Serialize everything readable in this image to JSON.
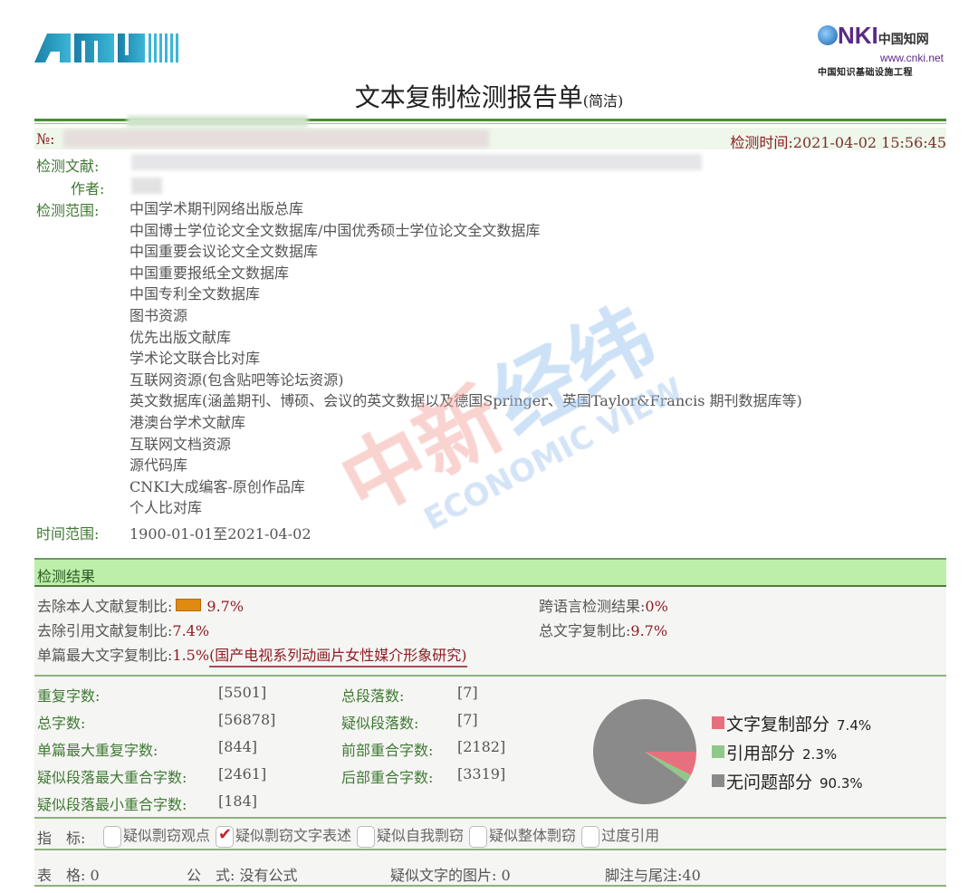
{
  "header": {
    "left_logo": "AMLC",
    "right_logo": {
      "brand": "CNKI中国知网",
      "url": "www.cnki.net",
      "tagline": "中国知识基础设施工程"
    },
    "title": "文本复制检测报告单",
    "title_suffix": "(简洁)"
  },
  "meta": {
    "no_label": "№:",
    "time_label": "检测时间",
    "time_value": ":2021-04-02 15:56:45",
    "doc_label": "检测文献:",
    "author_label": "作者:",
    "scope_label": "检测范围:",
    "scope_items": [
      "中国学术期刊网络出版总库",
      "中国博士学位论文全文数据库/中国优秀硕士学位论文全文数据库",
      "中国重要会议论文全文数据库",
      "中国重要报纸全文数据库",
      "中国专利全文数据库",
      "图书资源",
      "优先出版文献库",
      "学术论文联合比对库",
      "互联网资源(包含贴吧等论坛资源)",
      "英文数据库(涵盖期刊、博硕、会议的英文数据以及德国Springer、英国Taylor&Francis 期刊数据库等)",
      "港澳台学术文献库",
      "互联网文档资源",
      "源代码库",
      "CNKI大成编客-原创作品库",
      "个人比对库"
    ],
    "range_label": "时间范围:",
    "range_value": "1900-01-01至2021-04-02"
  },
  "watermark": "中新经纬 ECONOMIC VIEW",
  "results": {
    "section_title": "检测结果",
    "self_excl_label": "去除本人文献复制比:",
    "self_excl_value": "9.7%",
    "cross_lang_label": "跨语言检测结果:",
    "cross_lang_value": "0%",
    "cite_excl_label": "去除引用文献复制比:",
    "cite_excl_value": "7.4%",
    "total_copy_label": "总文字复制比:",
    "total_copy_value": "9.7%",
    "max_single_label": "单篇最大文字复制比:",
    "max_single_value": "1.5%",
    "max_single_source": "(国产电视系列动画片女性媒介形象研究)",
    "colors": {
      "bar": "#e08a12",
      "copy": "#e8707e",
      "cite": "#8fc98a",
      "ok": "#8a8a8a"
    }
  },
  "stats": [
    {
      "label": "重复字数:",
      "value": "[5501]"
    },
    {
      "label": "总段落数:",
      "value": "[7]"
    },
    {
      "label": "总字数:",
      "value": "[56878]"
    },
    {
      "label": "疑似段落数:",
      "value": "[7]"
    },
    {
      "label": "单篇最大重复字数:",
      "value": "[844]"
    },
    {
      "label": "前部重合字数:",
      "value": "[2182]"
    },
    {
      "label": "疑似段落最大重合字数:",
      "value": "[2461]"
    },
    {
      "label": "后部重合字数:",
      "value": "[3319]"
    },
    {
      "label": "疑似段落最小重合字数:",
      "value": "[184]"
    }
  ],
  "chart_data": {
    "type": "pie",
    "legend_position": "right",
    "slices": [
      {
        "name": "文字复制部分",
        "value": 7.4,
        "label": "7.4%",
        "color": "#e8707e"
      },
      {
        "name": "引用部分",
        "value": 2.3,
        "label": "2.3%",
        "color": "#8fc98a"
      },
      {
        "name": "无问题部分",
        "value": 90.3,
        "label": "90.3%",
        "color": "#8a8a8a"
      }
    ]
  },
  "indicators": {
    "label": "指　标:",
    "items": [
      {
        "label": "疑似剽窃观点",
        "checked": false
      },
      {
        "label": "疑似剽窃文字表述",
        "checked": true
      },
      {
        "label": "疑似自我剽窃",
        "checked": false
      },
      {
        "label": "疑似整体剽窃",
        "checked": false
      },
      {
        "label": "过度引用",
        "checked": false
      }
    ]
  },
  "footer": {
    "tables_label": "表　格:",
    "tables_value": "0",
    "formula_label": "公　式:",
    "formula_value": "没有公式",
    "images_label": "疑似文字的图片:",
    "images_value": "0",
    "notes_label": "脚注与尾注:",
    "notes_value": "40"
  }
}
